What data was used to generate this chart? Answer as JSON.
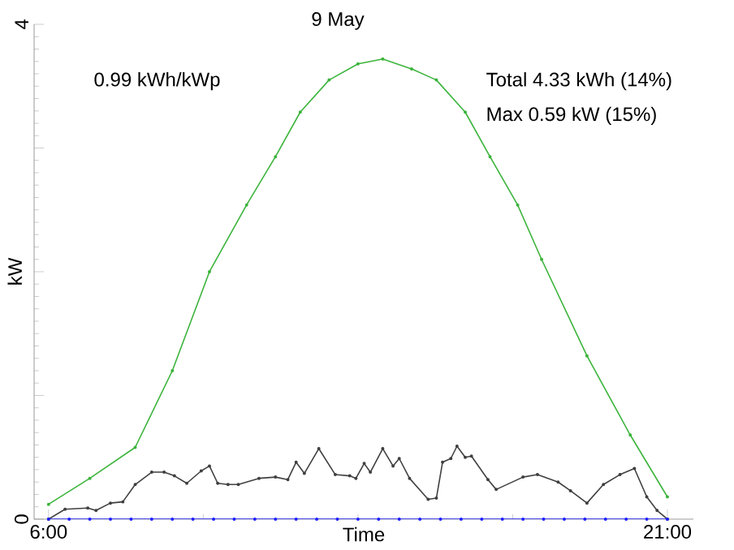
{
  "chart_data": {
    "type": "line",
    "title": "9 May",
    "xlabel": "Time",
    "ylabel": "kW",
    "annotations": [
      "0.99 kWh/kWp",
      "Total 4.33 kWh (14%)",
      "Max 0.59 kW (15%)"
    ],
    "xlim": [
      5.65,
      21.63
    ],
    "ylim": [
      0,
      4
    ],
    "xticks": [
      {
        "value": 6,
        "label": "6:00"
      },
      {
        "value": 21,
        "label": "21:00"
      }
    ],
    "yticks": [
      0,
      {
        "value": 1,
        "label": null
      },
      {
        "value": 2,
        "label": null
      },
      {
        "value": 3,
        "label": null
      },
      4
    ],
    "marker": "circle",
    "grid": false,
    "series": [
      {
        "color": "#3cb43c",
        "x": [
          6.0,
          7.0,
          8.1,
          9.0,
          9.9,
          10.8,
          11.5,
          12.1,
          12.8,
          13.5,
          14.1,
          14.8,
          15.4,
          16.1,
          16.7,
          17.37,
          17.95,
          19.05,
          20.1,
          21.0
        ],
        "values": [
          0.12,
          0.33,
          0.58,
          1.2,
          2.0,
          2.54,
          2.93,
          3.29,
          3.55,
          3.68,
          3.72,
          3.64,
          3.55,
          3.29,
          2.93,
          2.54,
          2.1,
          1.32,
          0.68,
          0.18
        ]
      },
      {
        "color": "#404040",
        "x": [
          6.0,
          6.4,
          6.95,
          7.15,
          7.5,
          7.8,
          8.1,
          8.5,
          8.8,
          9.05,
          9.35,
          9.7,
          9.9,
          10.1,
          10.35,
          10.6,
          11.1,
          11.5,
          11.8,
          12.0,
          12.2,
          12.55,
          12.95,
          13.3,
          13.45,
          13.65,
          13.8,
          14.1,
          14.35,
          14.5,
          14.75,
          15.2,
          15.4,
          15.55,
          15.75,
          15.9,
          16.1,
          16.25,
          16.65,
          16.85,
          17.5,
          17.85,
          18.35,
          18.65,
          19.05,
          19.45,
          19.85,
          20.2,
          20.5,
          20.75,
          21.0
        ],
        "values": [
          0.0,
          0.08,
          0.09,
          0.07,
          0.13,
          0.14,
          0.28,
          0.38,
          0.38,
          0.35,
          0.29,
          0.39,
          0.43,
          0.29,
          0.28,
          0.28,
          0.33,
          0.34,
          0.32,
          0.46,
          0.37,
          0.57,
          0.36,
          0.35,
          0.33,
          0.45,
          0.38,
          0.57,
          0.43,
          0.49,
          0.33,
          0.16,
          0.17,
          0.46,
          0.49,
          0.59,
          0.5,
          0.51,
          0.32,
          0.24,
          0.34,
          0.36,
          0.3,
          0.23,
          0.13,
          0.28,
          0.36,
          0.41,
          0.18,
          0.07,
          0.0
        ]
      },
      {
        "color": "#1f1fff",
        "x": [
          6.0,
          6.5,
          7.0,
          7.5,
          8.0,
          8.5,
          9.0,
          9.5,
          10.0,
          10.5,
          11.0,
          11.5,
          12.0,
          12.5,
          13.0,
          13.5,
          14.0,
          14.5,
          15.0,
          15.5,
          16.0,
          16.5,
          17.0,
          17.5,
          18.0,
          18.5,
          19.0,
          19.5,
          20.0,
          20.5,
          21.0
        ],
        "values": [
          0,
          0,
          0,
          0,
          0,
          0,
          0,
          0,
          0,
          0,
          0,
          0,
          0,
          0,
          0,
          0,
          0,
          0,
          0,
          0,
          0,
          0,
          0,
          0,
          0,
          0,
          0,
          0,
          0,
          0,
          0
        ]
      }
    ]
  }
}
